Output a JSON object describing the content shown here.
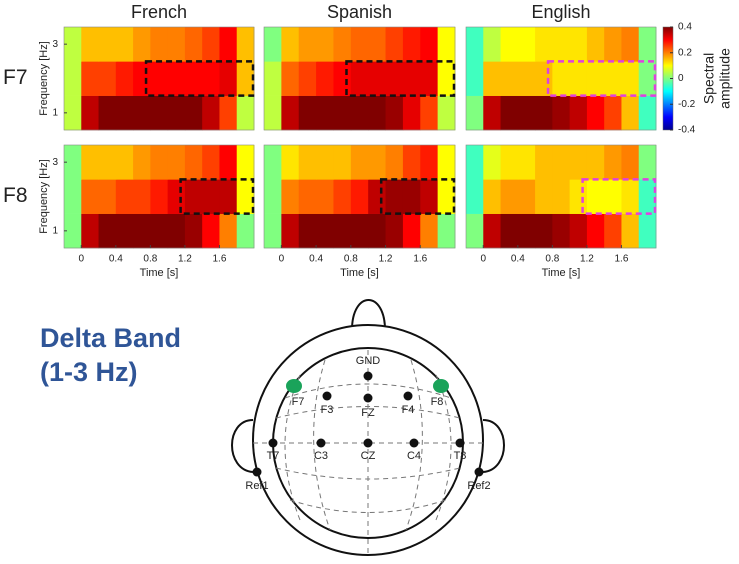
{
  "chart_data": [
    {
      "type": "heatmap",
      "title": "French",
      "row_label": "F7",
      "ylabel": "Frequency [Hz]",
      "yticks": [
        1,
        3
      ],
      "x": [
        -0.1,
        0.1,
        0.3,
        0.5,
        0.7,
        0.9,
        1.1,
        1.3,
        1.5,
        1.7,
        1.9
      ],
      "y": [
        1,
        2,
        3
      ],
      "xlim": [
        -0.2,
        2.0
      ],
      "ylim": [
        0.5,
        3.5
      ],
      "z": [
        [
          0.05,
          0.35,
          0.4,
          0.4,
          0.4,
          0.4,
          0.4,
          0.4,
          0.35,
          0.25,
          0.05
        ],
        [
          0.05,
          0.25,
          0.25,
          0.28,
          0.3,
          0.3,
          0.3,
          0.3,
          0.3,
          0.32,
          0.15
        ],
        [
          0.05,
          0.15,
          0.15,
          0.15,
          0.18,
          0.2,
          0.2,
          0.22,
          0.25,
          0.3,
          0.15
        ]
      ],
      "highlight": {
        "x": [
          0.75,
          2.0
        ],
        "y": [
          1.5,
          2.5
        ],
        "color": "#111111"
      }
    },
    {
      "type": "heatmap",
      "title": "Spanish",
      "x": [
        -0.1,
        0.1,
        0.3,
        0.5,
        0.7,
        0.9,
        1.1,
        1.3,
        1.5,
        1.7,
        1.9
      ],
      "y": [
        1,
        2,
        3
      ],
      "xlim": [
        -0.2,
        2.0
      ],
      "ylim": [
        0.5,
        3.5
      ],
      "z": [
        [
          0.05,
          0.35,
          0.4,
          0.4,
          0.4,
          0.4,
          0.4,
          0.38,
          0.32,
          0.25,
          0.05
        ],
        [
          0.05,
          0.22,
          0.25,
          0.28,
          0.3,
          0.32,
          0.32,
          0.32,
          0.32,
          0.32,
          0.1
        ],
        [
          0.0,
          0.15,
          0.18,
          0.18,
          0.2,
          0.22,
          0.22,
          0.25,
          0.28,
          0.3,
          0.1
        ]
      ],
      "highlight": {
        "x": [
          0.75,
          2.0
        ],
        "y": [
          1.5,
          2.5
        ],
        "color": "#111111"
      }
    },
    {
      "type": "heatmap",
      "title": "English",
      "x": [
        -0.1,
        0.1,
        0.3,
        0.5,
        0.7,
        0.9,
        1.1,
        1.3,
        1.5,
        1.7,
        1.9
      ],
      "y": [
        1,
        2,
        3
      ],
      "xlim": [
        -0.2,
        2.0
      ],
      "ylim": [
        0.5,
        3.5
      ],
      "z": [
        [
          0.0,
          0.35,
          0.4,
          0.4,
          0.4,
          0.38,
          0.35,
          0.3,
          0.25,
          0.15,
          -0.05
        ],
        [
          -0.05,
          0.15,
          0.15,
          0.15,
          0.15,
          0.12,
          0.12,
          0.12,
          0.12,
          0.12,
          0.0
        ],
        [
          -0.05,
          0.05,
          0.1,
          0.1,
          0.12,
          0.12,
          0.12,
          0.15,
          0.18,
          0.2,
          0.0
        ]
      ],
      "highlight": {
        "x": [
          0.75,
          2.0
        ],
        "y": [
          1.5,
          2.5
        ],
        "color": "#e040e0"
      },
      "colorbar": {
        "label": [
          "Spectral",
          "amplitude"
        ],
        "lim": [
          -0.4,
          0.4
        ],
        "ticks": [
          0.4,
          0.2,
          0,
          -0.2,
          -0.4
        ]
      }
    },
    {
      "type": "heatmap",
      "row_label": "F8",
      "ylabel": "Frequency [Hz]",
      "yticks": [
        1,
        3
      ],
      "xlabel": "Time [s]",
      "xticks": [
        0,
        0.4,
        0.8,
        1.2,
        1.6
      ],
      "x": [
        -0.1,
        0.1,
        0.3,
        0.5,
        0.7,
        0.9,
        1.1,
        1.3,
        1.5,
        1.7,
        1.9
      ],
      "y": [
        1,
        2,
        3
      ],
      "xlim": [
        -0.2,
        2.0
      ],
      "ylim": [
        0.5,
        3.5
      ],
      "z": [
        [
          0.0,
          0.35,
          0.4,
          0.4,
          0.4,
          0.4,
          0.4,
          0.38,
          0.3,
          0.2,
          0.0
        ],
        [
          0.0,
          0.22,
          0.22,
          0.25,
          0.25,
          0.28,
          0.32,
          0.35,
          0.35,
          0.35,
          0.1
        ],
        [
          0.0,
          0.15,
          0.15,
          0.15,
          0.18,
          0.2,
          0.2,
          0.22,
          0.25,
          0.3,
          0.1
        ]
      ],
      "highlight": {
        "x": [
          1.15,
          2.0
        ],
        "y": [
          1.5,
          2.5
        ],
        "color": "#111111"
      }
    },
    {
      "type": "heatmap",
      "xlabel": "Time [s]",
      "xticks": [
        0,
        0.4,
        0.8,
        1.2,
        1.6
      ],
      "x": [
        -0.1,
        0.1,
        0.3,
        0.5,
        0.7,
        0.9,
        1.1,
        1.3,
        1.5,
        1.7,
        1.9
      ],
      "y": [
        1,
        2,
        3
      ],
      "xlim": [
        -0.2,
        2.0
      ],
      "ylim": [
        0.5,
        3.5
      ],
      "z": [
        [
          0.0,
          0.35,
          0.4,
          0.4,
          0.4,
          0.4,
          0.4,
          0.38,
          0.3,
          0.2,
          0.0
        ],
        [
          0.0,
          0.2,
          0.22,
          0.22,
          0.25,
          0.28,
          0.35,
          0.38,
          0.38,
          0.35,
          0.1
        ],
        [
          0.0,
          0.12,
          0.15,
          0.15,
          0.15,
          0.18,
          0.18,
          0.2,
          0.25,
          0.28,
          0.1
        ]
      ],
      "highlight": {
        "x": [
          1.15,
          2.0
        ],
        "y": [
          1.5,
          2.5
        ],
        "color": "#111111"
      }
    },
    {
      "type": "heatmap",
      "xlabel": "Time [s]",
      "xticks": [
        0,
        0.4,
        0.8,
        1.2,
        1.6
      ],
      "x": [
        -0.1,
        0.1,
        0.3,
        0.5,
        0.7,
        0.9,
        1.1,
        1.3,
        1.5,
        1.7,
        1.9
      ],
      "y": [
        1,
        2,
        3
      ],
      "xlim": [
        -0.2,
        2.0
      ],
      "ylim": [
        0.5,
        3.5
      ],
      "z": [
        [
          0.0,
          0.35,
          0.4,
          0.4,
          0.4,
          0.38,
          0.35,
          0.3,
          0.25,
          0.15,
          -0.05
        ],
        [
          -0.05,
          0.15,
          0.18,
          0.18,
          0.15,
          0.15,
          0.12,
          0.1,
          0.1,
          0.12,
          -0.05
        ],
        [
          -0.05,
          0.08,
          0.12,
          0.12,
          0.15,
          0.15,
          0.15,
          0.15,
          0.18,
          0.2,
          0.0
        ]
      ],
      "highlight": {
        "x": [
          1.15,
          2.0
        ],
        "y": [
          1.5,
          2.5
        ],
        "color": "#e040e0"
      }
    }
  ],
  "diagram": {
    "title": [
      "Delta Band",
      "(1-3 Hz)"
    ],
    "electrodes": [
      {
        "label": "GND",
        "highlight": false
      },
      {
        "label": "F7",
        "highlight": true
      },
      {
        "label": "F3",
        "highlight": false
      },
      {
        "label": "FZ",
        "highlight": false
      },
      {
        "label": "F4",
        "highlight": false
      },
      {
        "label": "F8",
        "highlight": true
      },
      {
        "label": "T7",
        "highlight": false
      },
      {
        "label": "C3",
        "highlight": false
      },
      {
        "label": "CZ",
        "highlight": false
      },
      {
        "label": "C4",
        "highlight": false
      },
      {
        "label": "T8",
        "highlight": false
      },
      {
        "label": "Ref1",
        "highlight": false
      },
      {
        "label": "Ref2",
        "highlight": false
      }
    ]
  }
}
